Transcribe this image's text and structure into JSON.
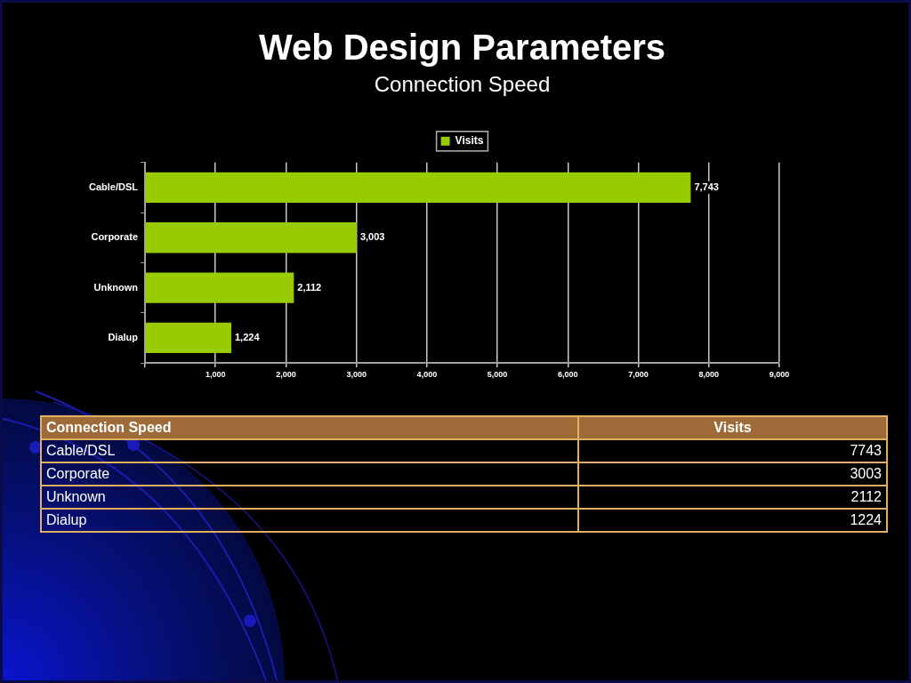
{
  "chart_data": [
    {
      "type": "bar",
      "title": "Web Design Parameters",
      "subtitle": "Connection Speed",
      "orientation": "horizontal",
      "categories": [
        "Cable/DSL",
        "Corporate",
        "Unknown",
        "Dialup"
      ],
      "series": [
        {
          "name": "Visits",
          "color": "#99cc00",
          "values": [
            7743,
            3003,
            2112,
            1224
          ],
          "value_labels": [
            "7,743",
            "3,003",
            "2,112",
            "1,224"
          ]
        }
      ],
      "xlim": [
        0,
        9000
      ],
      "xticks": [
        {
          "value": 0,
          "label": null
        },
        {
          "value": 1000,
          "label": "1,000"
        },
        {
          "value": 2000,
          "label": "2,000"
        },
        {
          "value": 3000,
          "label": "3,000"
        },
        {
          "value": 4000,
          "label": "4,000"
        },
        {
          "value": 5000,
          "label": "5,000"
        },
        {
          "value": 6000,
          "label": "6,000"
        },
        {
          "value": 7000,
          "label": "7,000"
        },
        {
          "value": 8000,
          "label": "8,000"
        },
        {
          "value": 9000,
          "label": "9,000"
        }
      ],
      "grid": "x",
      "legend": "top"
    },
    {
      "type": "other",
      "ylabel": "Connection Speed",
      "categories": [
        "Cable/DSL",
        "Corporate",
        "Unknown",
        "Dialup"
      ],
      "series": [
        {
          "name": "Visits",
          "values": [
            7743,
            3003,
            2112,
            1224
          ]
        }
      ],
      "data_labels": true
    }
  ]
}
